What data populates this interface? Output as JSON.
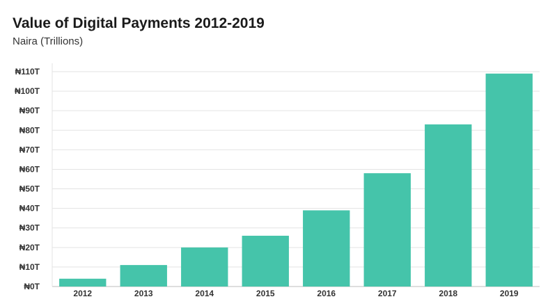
{
  "chart_data": {
    "type": "bar",
    "title": "Value of Digital Payments 2012-2019",
    "subtitle": "Naira (Trillions)",
    "xlabel": "",
    "ylabel": "",
    "categories": [
      "2012",
      "2013",
      "2014",
      "2015",
      "2016",
      "2017",
      "2018",
      "2019"
    ],
    "values": [
      4,
      11,
      20,
      26,
      39,
      58,
      83,
      109
    ],
    "ylim": [
      0,
      110
    ],
    "yticks": [
      0,
      10,
      20,
      30,
      40,
      50,
      60,
      70,
      80,
      90,
      100,
      110
    ],
    "ytick_labels": [
      "₦0T",
      "₦10T",
      "₦20T",
      "₦30T",
      "₦40T",
      "₦50T",
      "₦60T",
      "₦70T",
      "₦80T",
      "₦90T",
      "₦100T",
      "₦110T"
    ],
    "grid": true,
    "legend": "none",
    "bar_color": "#45c4aa"
  }
}
